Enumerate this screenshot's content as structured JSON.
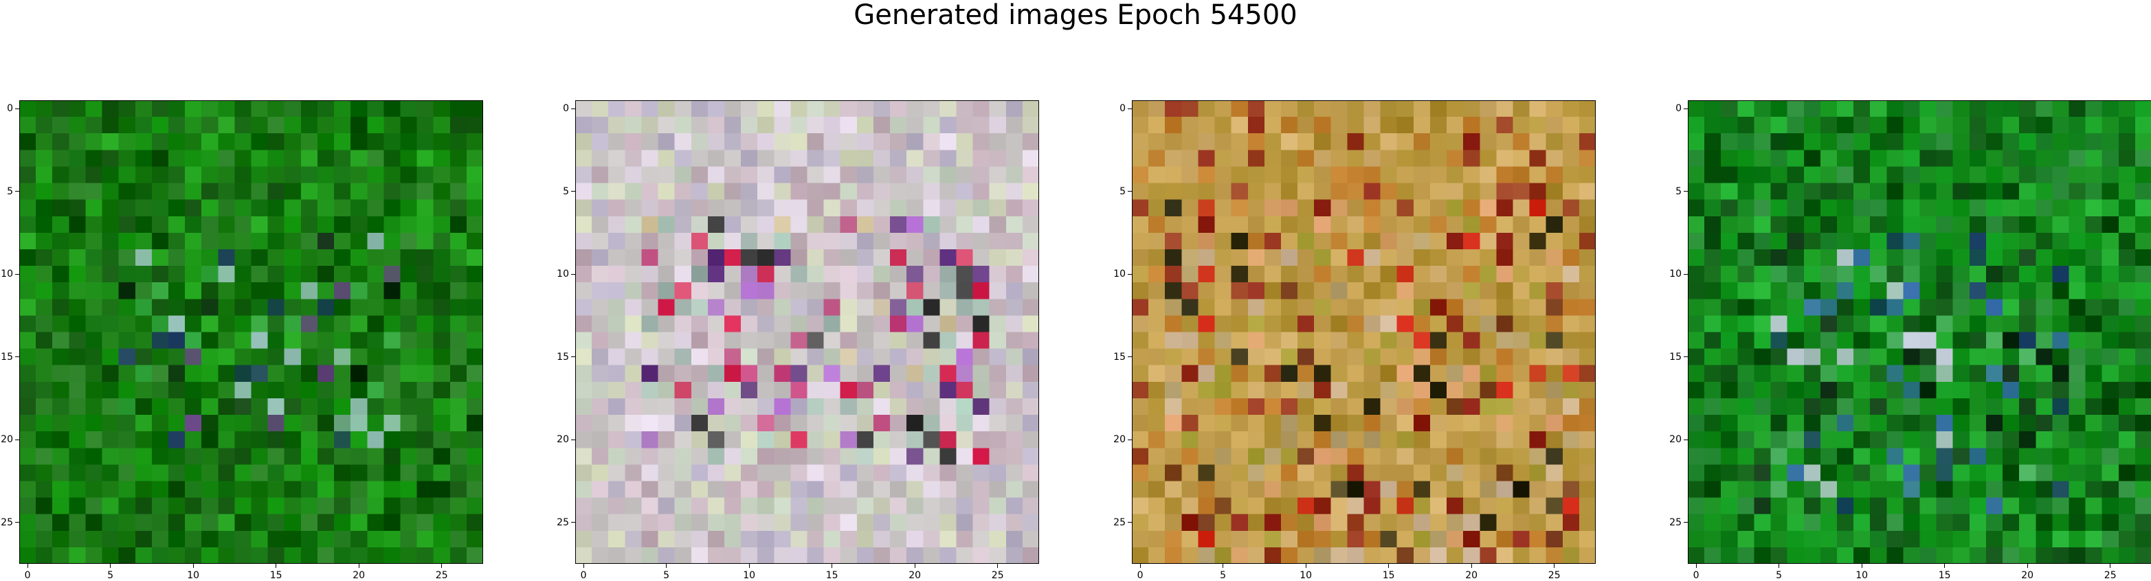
{
  "chart_data": {
    "type": "heatmap",
    "title": "Generated images Epoch 54500",
    "grid_size": 28,
    "x_ticks": [
      0,
      5,
      10,
      15,
      20,
      25
    ],
    "y_ticks": [
      0,
      5,
      10,
      15,
      20,
      25
    ],
    "panels": [
      {
        "name": "image-1",
        "base_color": "#1a7a12",
        "palette": [
          "#0a6a0a",
          "#138a0f",
          "#0d5e0a",
          "#1fa51a",
          "#2a7f26",
          "#0b4a08",
          "#3cb24a",
          "#0c2a10",
          "#1c3a60",
          "#6a3a8a",
          "#9cc6c0"
        ],
        "feature_region": [
          8,
          6,
          20,
          22
        ]
      },
      {
        "name": "image-2",
        "base_color": "#c8c4c4",
        "palette": [
          "#d8c4d0",
          "#c6d4c0",
          "#b8b0c8",
          "#d2d8b8",
          "#c0a8b4",
          "#e4d8e8",
          "#a8c8b8",
          "#d0c098",
          "#8fa8a0",
          "#c83a7a",
          "#d81a4a",
          "#5a2a7a",
          "#1a1a1a",
          "#b06ad0"
        ],
        "feature_region": [
          7,
          4,
          21,
          24
        ]
      },
      {
        "name": "image-3",
        "base_color": "#c4a050",
        "palette": [
          "#c8a458",
          "#b89a40",
          "#d4b070",
          "#a8882a",
          "#c07a28",
          "#8a1a10",
          "#6a2a10",
          "#d0b8a0",
          "#b4a070",
          "#e0a070",
          "#d02010",
          "#1a1a08",
          "#a09a30"
        ],
        "feature_region": [
          6,
          2,
          27,
          26
        ]
      },
      {
        "name": "image-4",
        "base_color": "#138a1a",
        "palette": [
          "#0c7a18",
          "#1aa024",
          "#0d5a12",
          "#20b030",
          "#0a4a10",
          "#2a8a3a",
          "#0e2a14",
          "#3a70b0",
          "#1a3a6a",
          "#c8d0e0",
          "#4ab060"
        ],
        "feature_region": [
          8,
          4,
          24,
          22
        ]
      }
    ]
  }
}
